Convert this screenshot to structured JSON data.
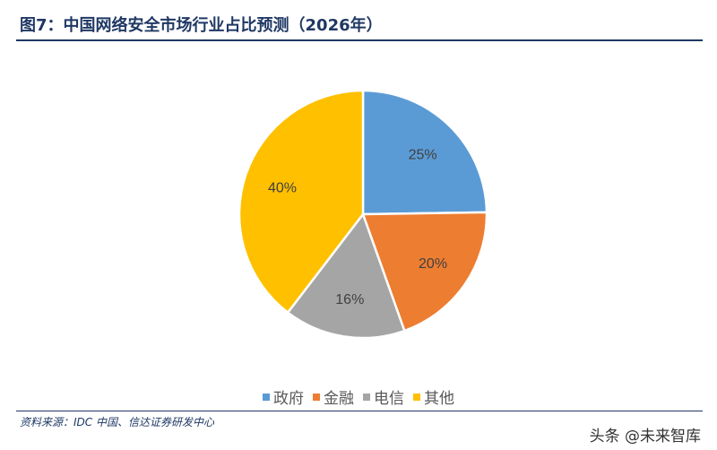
{
  "header": {
    "title": "图7：中国网络安全市场行业占比预测（2026年）"
  },
  "chart_data": {
    "type": "pie",
    "categories": [
      "政府",
      "金融",
      "电信",
      "其他"
    ],
    "values": [
      25,
      20,
      16,
      40
    ],
    "labels": [
      "25%",
      "20%",
      "16%",
      "40%"
    ],
    "colors": [
      "#5b9bd5",
      "#ed7d31",
      "#a5a5a5",
      "#ffc000"
    ],
    "legend_position": "bottom"
  },
  "footer": {
    "source": "资料来源：IDC 中国、信达证券研发中心",
    "watermark": "头条 @未来智库"
  }
}
